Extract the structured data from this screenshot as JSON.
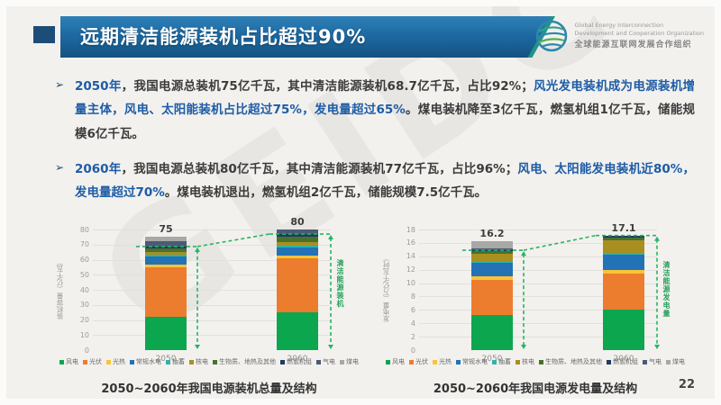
{
  "slide": {
    "page_number": "22",
    "watermark": "GEIDCO"
  },
  "header": {
    "title": "远期清洁能源装机占比超过90%"
  },
  "logo": {
    "line1": "Global Energy Interconnection",
    "line2": "Development and Cooperation Organization",
    "line3": "全球能源互联网发展合作组织"
  },
  "bullet_marker": "➢",
  "bullets": [
    {
      "segments": [
        {
          "text": "2050年",
          "em": true
        },
        {
          "text": "，我国电源总装机75亿千瓦，其中清洁能源装机68.7亿千瓦，占比92%；",
          "em": false
        },
        {
          "text": "风光发电装机成为电源装机增量主体，风电、太阳能装机占比超过75%，发电量超过65%",
          "em": true
        },
        {
          "text": "。煤电装机降至3亿千瓦，燃氢机组1亿千瓦，储能规模6亿千瓦。",
          "em": false
        }
      ]
    },
    {
      "segments": [
        {
          "text": "2060年",
          "em": true
        },
        {
          "text": "，我国电源总装机80亿千瓦，其中清洁能源装机77亿千瓦，占比96%；",
          "em": false
        },
        {
          "text": "风电、太阳能发电装机近80%，发电量超过70%",
          "em": true
        },
        {
          "text": "。煤电装机退出，燃氢机组2亿千瓦，储能规模7.5亿千瓦。",
          "em": false
        }
      ]
    }
  ],
  "colors": {
    "banner_blue": "#1d6aa3",
    "banner_stripe_teal": "#1f9488",
    "accent_text_blue": "#1e5ca6",
    "dashed_green": "#27b463"
  },
  "chart_data": [
    {
      "type": "bar",
      "stacked": true,
      "title": "2050~2060年我国电源装机总量及结构",
      "ylabel": "装机容量（亿千瓦）",
      "ylim": [
        0,
        80
      ],
      "yticks": [
        0,
        10,
        20,
        30,
        40,
        50,
        60,
        70,
        80
      ],
      "grid": true,
      "legend_position": "bottom",
      "categories": [
        "2050",
        "2060"
      ],
      "totals": [
        75,
        80
      ],
      "clean_levels": [
        68.7,
        77
      ],
      "clean_label": "清洁能源装机",
      "series": [
        {
          "name": "风电",
          "color": "#0ca64f",
          "values": [
            22,
            25
          ]
        },
        {
          "name": "光伏",
          "color": "#ec7d2f",
          "values": [
            33,
            36
          ]
        },
        {
          "name": "光热",
          "color": "#fbc337",
          "values": [
            1.5,
            1.5
          ]
        },
        {
          "name": "常规水电",
          "color": "#2272b5",
          "values": [
            5.5,
            5.5
          ]
        },
        {
          "name": "抽蓄",
          "color": "#2fb3ae",
          "values": [
            1.2,
            1.5
          ]
        },
        {
          "name": "核电",
          "color": "#a98f1f",
          "values": [
            1.8,
            2
          ]
        },
        {
          "name": "生物质、地热及其他",
          "color": "#47722c",
          "values": [
            2.7,
            3.5
          ]
        },
        {
          "name": "燃氢机组",
          "color": "#1f3a63",
          "values": [
            1,
            2
          ]
        },
        {
          "name": "气电",
          "color": "#4a5b77",
          "values": [
            3.3,
            3
          ]
        },
        {
          "name": "煤电",
          "color": "#a8a8a6",
          "values": [
            3,
            0
          ]
        }
      ]
    },
    {
      "type": "bar",
      "stacked": true,
      "title": "2050~2060年我国电源发电量及结构",
      "ylabel": "发电量（万亿千瓦时）",
      "ylim": [
        0,
        18
      ],
      "yticks": [
        0,
        2,
        4,
        6,
        8,
        10,
        12,
        14,
        16,
        18
      ],
      "grid": true,
      "legend_position": "bottom",
      "categories": [
        "2050",
        "2060"
      ],
      "totals": [
        16.2,
        17.1
      ],
      "clean_levels": [
        14.9,
        17.1
      ],
      "clean_label": "清洁能源发电量",
      "series": [
        {
          "name": "风电",
          "color": "#0ca64f",
          "values": [
            5.2,
            6.0
          ]
        },
        {
          "name": "光伏",
          "color": "#ec7d2f",
          "values": [
            5.3,
            5.4
          ]
        },
        {
          "name": "光热",
          "color": "#fbc337",
          "values": [
            0.5,
            0.6
          ]
        },
        {
          "name": "常规水电",
          "color": "#2272b5",
          "values": [
            2.0,
            2.3
          ]
        },
        {
          "name": "抽蓄",
          "color": "#2fb3ae",
          "values": [
            0.2,
            0.2
          ]
        },
        {
          "name": "核电",
          "color": "#a98f1f",
          "values": [
            1.2,
            1.9
          ]
        },
        {
          "name": "生物质、地热及其他",
          "color": "#47722c",
          "values": [
            0.4,
            0.4
          ]
        },
        {
          "name": "燃氢机组",
          "color": "#1f3a63",
          "values": [
            0.1,
            0.3
          ]
        },
        {
          "name": "气电",
          "color": "#4a5b77",
          "values": [
            0.3,
            0
          ]
        },
        {
          "name": "煤电",
          "color": "#a8a8a6",
          "values": [
            1.0,
            0
          ]
        }
      ]
    }
  ]
}
